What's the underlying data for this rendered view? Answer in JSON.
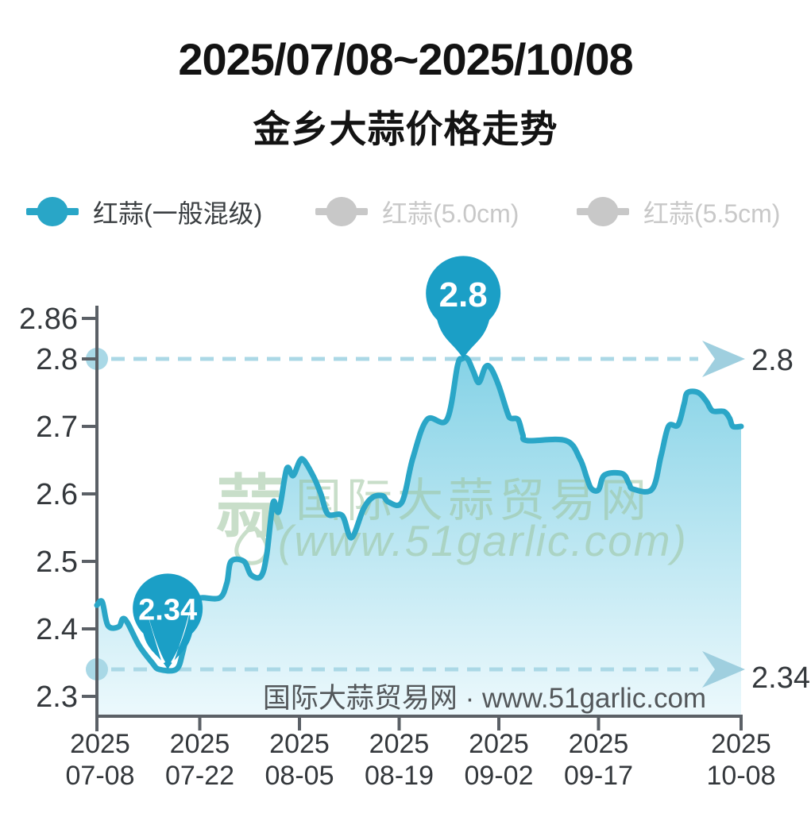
{
  "title": {
    "line1": "2025/07/08~2025/10/08",
    "line2": "金乡大蒜价格走势"
  },
  "legend": [
    {
      "label": "红蒜(一般混级)",
      "active": true
    },
    {
      "label": "红蒜(5.0cm)",
      "active": false
    },
    {
      "label": "红蒜(5.5cm)",
      "active": false
    }
  ],
  "watermark": {
    "logo_char": "蒜",
    "line1": "国际大蒜贸易网",
    "line2": "(www.51garlic.com)"
  },
  "credit": "国际大蒜贸易网 · www.51garlic.com",
  "colors": {
    "accent": "#29a6c7",
    "line": "#2aa6c7",
    "balloon": "#1b9fc6",
    "dash": "#abd8e6",
    "dot": "#a9d8e6",
    "arrow": "#9fcfdf",
    "axis": "#5b6066",
    "tick_text": "#34383c",
    "legend_inactive": "#c8c8c8",
    "fill_top": "#7fd0e5",
    "fill_bottom": "#eaf8fc",
    "watermark": "#9cc49e",
    "credit_text": "#53575a",
    "balloon_text": "#ffffff"
  },
  "chart_data": {
    "type": "area",
    "series_name": "红蒜(一般混级)",
    "title": "金乡大蒜价格走势",
    "date_range": "2025/07/08~2025/10/08",
    "x_unit": "days since 2025-07-08",
    "x_tick_days": [
      0,
      14,
      28,
      42,
      56,
      71,
      92
    ],
    "x_tick_labels": [
      [
        "2025",
        "07-08"
      ],
      [
        "2025",
        "07-22"
      ],
      [
        "2025",
        "08-05"
      ],
      [
        "2025",
        "08-19"
      ],
      [
        "2025",
        "09-02"
      ],
      [
        "2025",
        "09-17"
      ],
      [
        "2025",
        "10-08"
      ]
    ],
    "y_tick_labels": [
      "2.86",
      "2.8",
      "2.7",
      "2.6",
      "2.5",
      "2.4",
      "2.3"
    ],
    "y_tick_values": [
      2.86,
      2.8,
      2.7,
      2.6,
      2.5,
      2.4,
      2.3
    ],
    "ylim": [
      2.3,
      2.86
    ],
    "grid": false,
    "legend_position": "top",
    "max": {
      "day": 51,
      "value": 2.8,
      "label": "2.8"
    },
    "min": {
      "day": 9.5,
      "value": 2.34,
      "label": "2.34"
    },
    "reference_lines": [
      2.8,
      2.34
    ],
    "points": [
      [
        -0.45,
        2.435
      ],
      [
        0.3,
        2.44
      ],
      [
        1.1,
        2.405
      ],
      [
        2.6,
        2.403
      ],
      [
        3.2,
        2.415
      ],
      [
        3.9,
        2.408
      ],
      [
        5.5,
        2.375
      ],
      [
        7.3,
        2.35
      ],
      [
        8.3,
        2.34
      ],
      [
        10.7,
        2.34
      ],
      [
        11.6,
        2.365
      ],
      [
        12.4,
        2.405
      ],
      [
        13.2,
        2.44
      ],
      [
        14.2,
        2.446
      ],
      [
        16.8,
        2.446
      ],
      [
        17.8,
        2.468
      ],
      [
        18.4,
        2.5
      ],
      [
        20.2,
        2.5
      ],
      [
        21.2,
        2.48
      ],
      [
        22.6,
        2.478
      ],
      [
        23.4,
        2.51
      ],
      [
        24.3,
        2.587
      ],
      [
        25.1,
        2.574
      ],
      [
        26.2,
        2.637
      ],
      [
        27.1,
        2.627
      ],
      [
        28.0,
        2.648
      ],
      [
        28.6,
        2.65
      ],
      [
        30.0,
        2.625
      ],
      [
        31.0,
        2.6
      ],
      [
        32.0,
        2.57
      ],
      [
        34.0,
        2.568
      ],
      [
        35.3,
        2.535
      ],
      [
        37.0,
        2.578
      ],
      [
        38.3,
        2.595
      ],
      [
        39.7,
        2.597
      ],
      [
        40.5,
        2.588
      ],
      [
        42.4,
        2.588
      ],
      [
        43.9,
        2.652
      ],
      [
        45.9,
        2.71
      ],
      [
        48.7,
        2.71
      ],
      [
        50.2,
        2.79
      ],
      [
        50.8,
        2.8
      ],
      [
        51.6,
        2.8
      ],
      [
        52.4,
        2.782
      ],
      [
        53.2,
        2.765
      ],
      [
        54.1,
        2.788
      ],
      [
        54.9,
        2.786
      ],
      [
        56.0,
        2.76
      ],
      [
        57.3,
        2.72
      ],
      [
        57.8,
        2.712
      ],
      [
        58.9,
        2.71
      ],
      [
        59.6,
        2.688
      ],
      [
        60.3,
        2.679
      ],
      [
        66.1,
        2.679
      ],
      [
        68.2,
        2.652
      ],
      [
        69.2,
        2.625
      ],
      [
        69.9,
        2.608
      ],
      [
        71.0,
        2.606
      ],
      [
        71.9,
        2.628
      ],
      [
        74.5,
        2.63
      ],
      [
        75.5,
        2.615
      ],
      [
        76.1,
        2.607
      ],
      [
        78.9,
        2.607
      ],
      [
        80.2,
        2.656
      ],
      [
        81.3,
        2.7
      ],
      [
        82.7,
        2.702
      ],
      [
        83.6,
        2.733
      ],
      [
        84.1,
        2.75
      ],
      [
        85.7,
        2.75
      ],
      [
        86.9,
        2.737
      ],
      [
        87.8,
        2.723
      ],
      [
        89.5,
        2.722
      ],
      [
        90.3,
        2.712
      ],
      [
        90.8,
        2.7
      ],
      [
        92,
        2.7
      ]
    ]
  }
}
